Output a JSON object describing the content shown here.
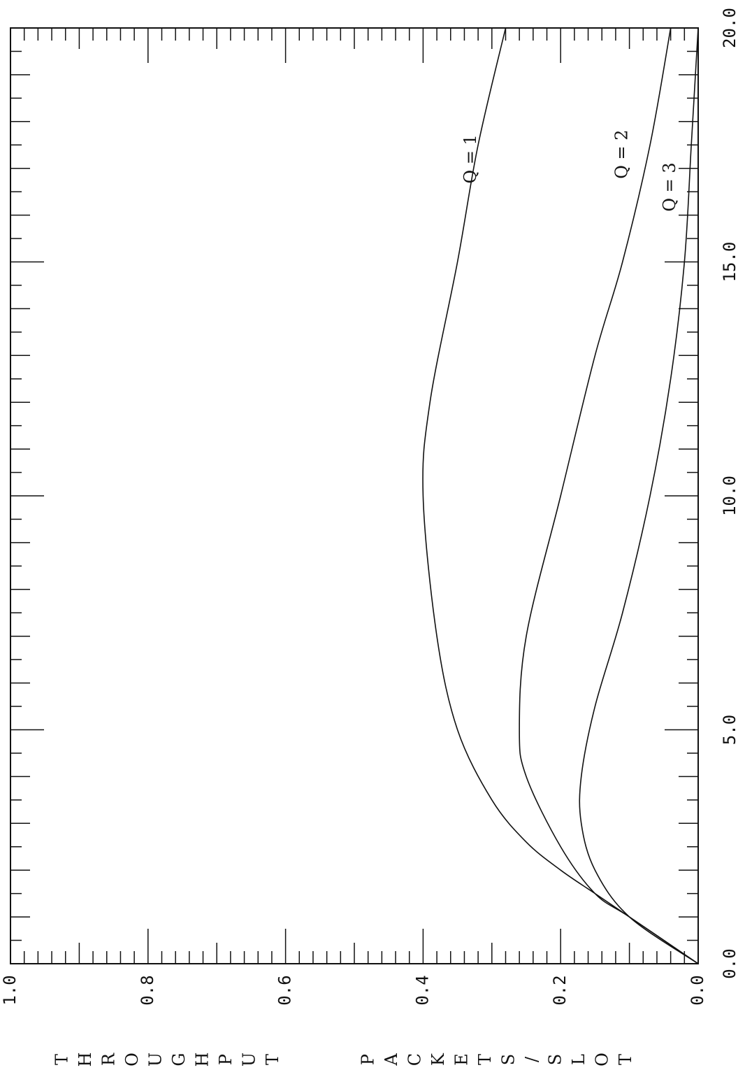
{
  "chart_data": {
    "type": "line",
    "orientation": "rotated-90-clockwise",
    "x_label": "THROUGHPUT",
    "y_label": "PACKETS/SLOT",
    "x_ticks": [
      "0.0",
      "0.2",
      "0.4",
      "0.6",
      "0.8",
      "1.0"
    ],
    "y_ticks": [
      "0.0",
      "5.0",
      "10.0",
      "15.0",
      "20.0"
    ],
    "xlim": [
      0,
      1
    ],
    "ylim": [
      0,
      20
    ],
    "series": [
      {
        "name": "Q = 1",
        "points": [
          [
            0,
            0
          ],
          [
            0.1,
            1
          ],
          [
            0.15,
            1.5
          ],
          [
            0.2,
            2
          ],
          [
            0.25,
            2.6
          ],
          [
            0.3,
            3.5
          ],
          [
            0.35,
            5
          ],
          [
            0.38,
            7
          ],
          [
            0.4,
            10
          ],
          [
            0.39,
            12
          ],
          [
            0.35,
            15
          ],
          [
            0.32,
            17.5
          ],
          [
            0.28,
            20
          ]
        ]
      },
      {
        "name": "Q = 2",
        "points": [
          [
            0,
            0
          ],
          [
            0.1,
            1
          ],
          [
            0.15,
            1.5
          ],
          [
            0.2,
            2.5
          ],
          [
            0.25,
            4
          ],
          [
            0.26,
            5
          ],
          [
            0.25,
            7
          ],
          [
            0.2,
            10
          ],
          [
            0.15,
            13
          ],
          [
            0.11,
            15
          ],
          [
            0.07,
            17.5
          ],
          [
            0.04,
            20
          ]
        ]
      },
      {
        "name": "Q = 3",
        "points": [
          [
            0,
            0
          ],
          [
            0.1,
            1
          ],
          [
            0.15,
            2
          ],
          [
            0.17,
            3
          ],
          [
            0.17,
            4
          ],
          [
            0.15,
            5.5
          ],
          [
            0.11,
            7.5
          ],
          [
            0.07,
            10
          ],
          [
            0.04,
            12.5
          ],
          [
            0.02,
            15
          ],
          [
            0.01,
            17.5
          ],
          [
            0.0,
            20
          ]
        ]
      }
    ],
    "curve_labels": [
      {
        "text": "Q = 1",
        "x": 0.33,
        "y": 17.2
      },
      {
        "text": "Q = 2",
        "x": 0.11,
        "y": 17.3
      },
      {
        "text": "Q = 3",
        "x": 0.04,
        "y": 16.6
      }
    ],
    "grid": false,
    "legend": "none"
  }
}
